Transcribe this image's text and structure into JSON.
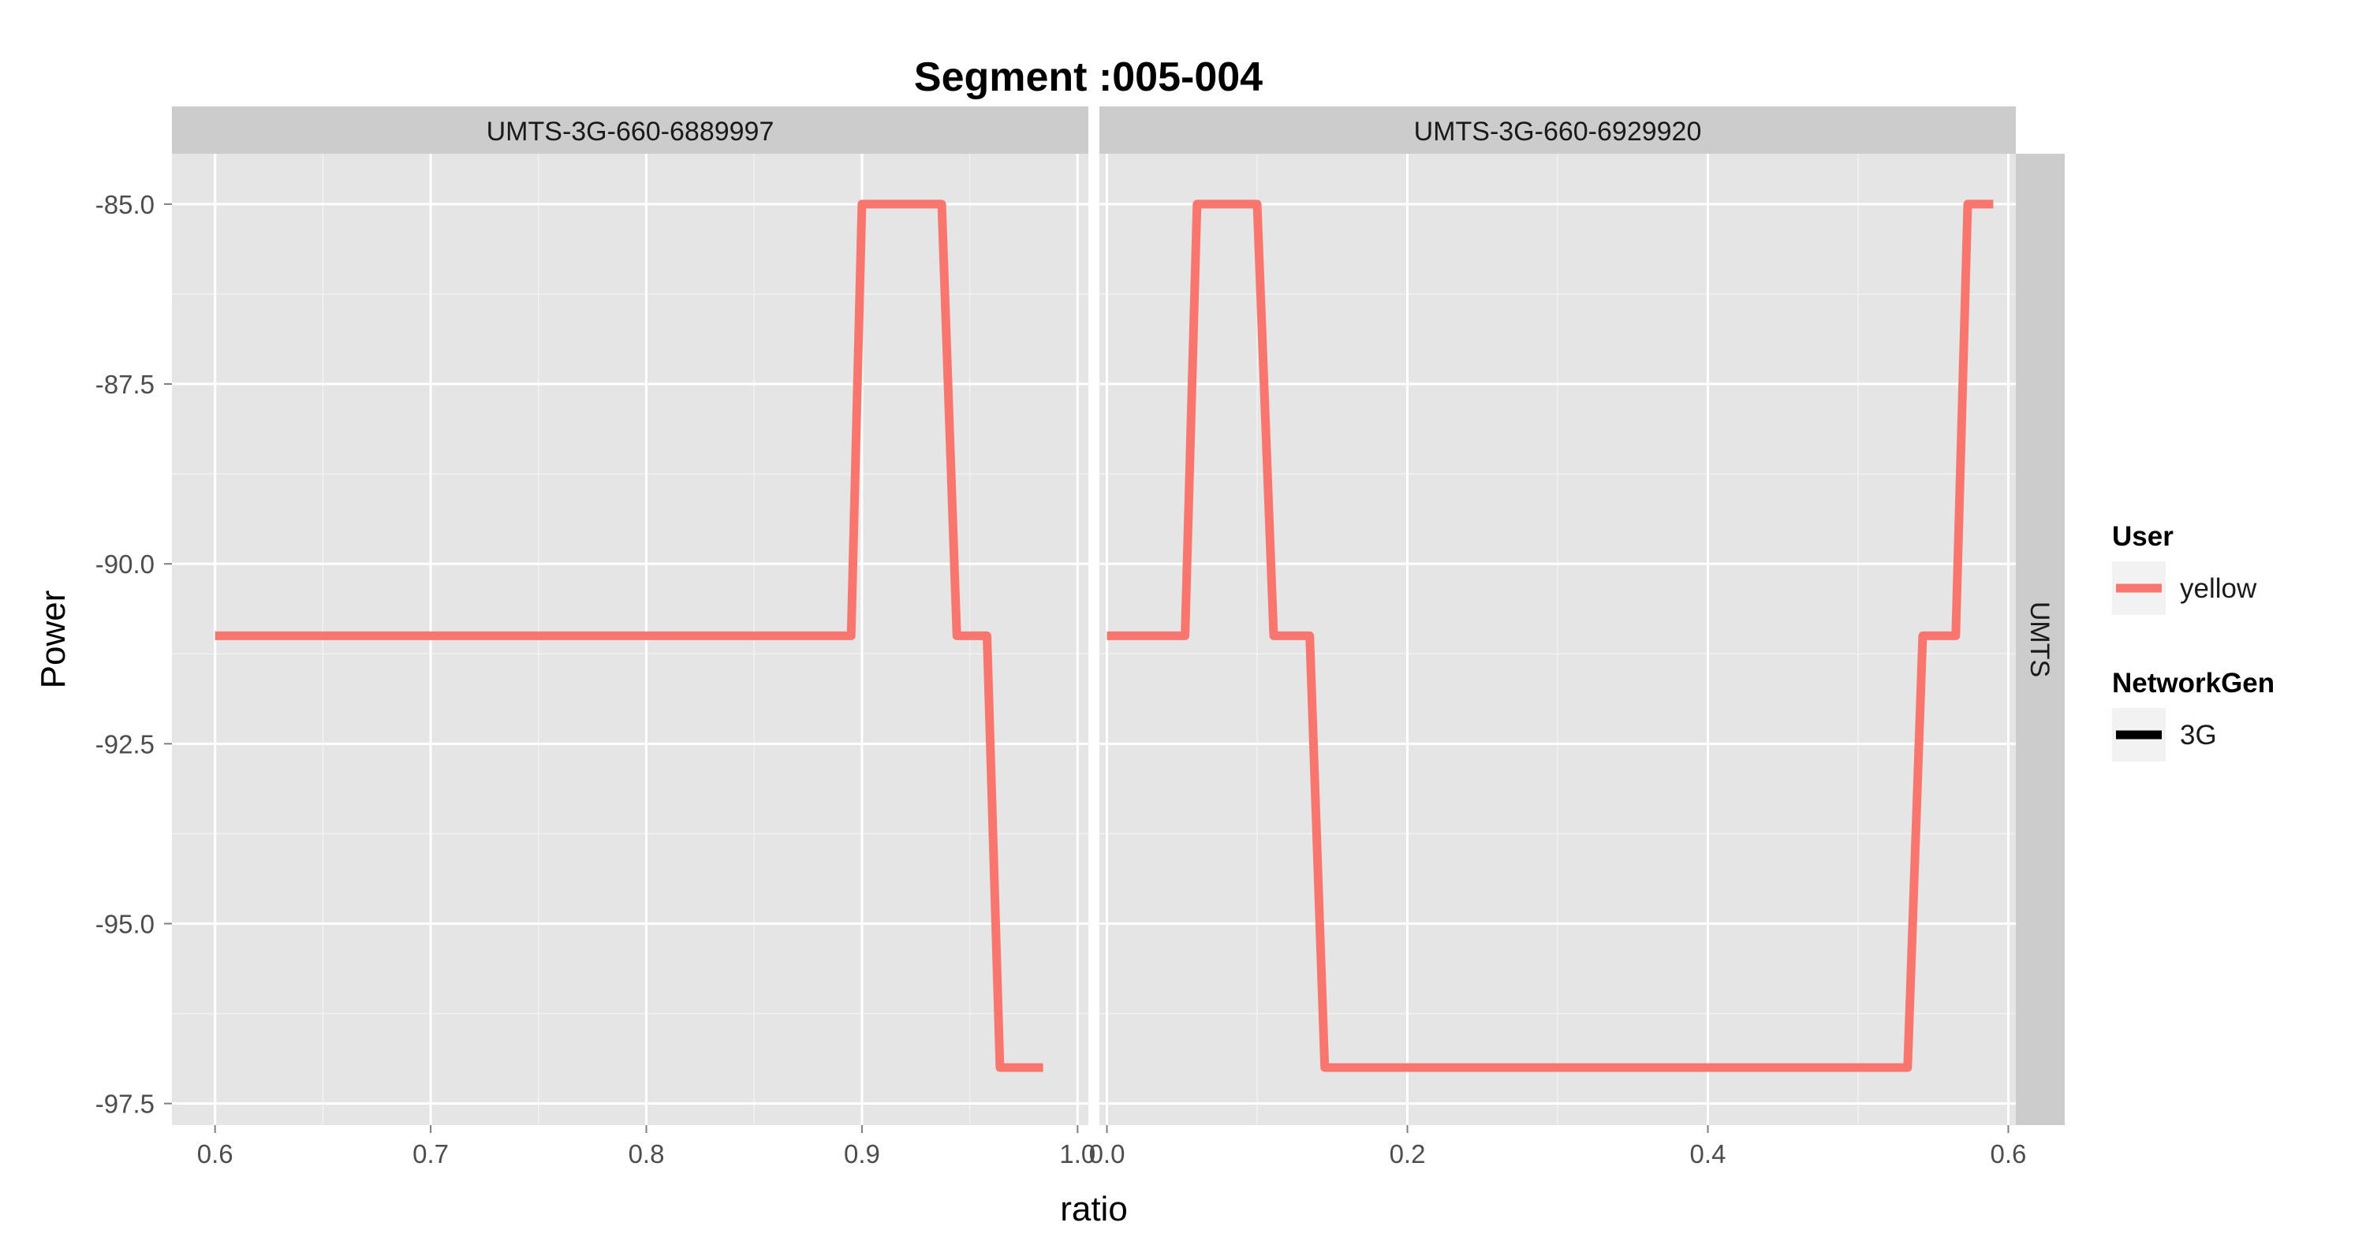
{
  "chart_data": {
    "type": "line",
    "title": "Segment :005-004",
    "xlabel": "ratio",
    "ylabel": "Power",
    "ylim": [
      -97.8,
      -84.3
    ],
    "yticks": [
      -85.0,
      -87.5,
      -90.0,
      -92.5,
      -95.0,
      -97.5
    ],
    "ytick_labels": [
      "-85.0",
      "-87.5",
      "-90.0",
      "-92.5",
      "-95.0",
      "-97.5"
    ],
    "row_strip": "UMTS",
    "line_color": "#F8766D",
    "panels": [
      {
        "strip": "UMTS-3G-660-6889997",
        "xlim": [
          0.58,
          1.005
        ],
        "xticks": [
          0.6,
          0.7,
          0.8,
          0.9,
          1.0
        ],
        "xtick_labels": [
          "0.6",
          "0.7",
          "0.8",
          "0.9",
          "1.0"
        ],
        "series": [
          {
            "name": "yellow",
            "x": [
              0.6,
              0.895,
              0.9,
              0.937,
              0.944,
              0.958,
              0.964,
              0.984
            ],
            "y": [
              -91,
              -91,
              -85,
              -85,
              -91,
              -91,
              -97,
              -97
            ]
          }
        ]
      },
      {
        "strip": "UMTS-3G-660-6929920",
        "xlim": [
          -0.005,
          0.605
        ],
        "xticks": [
          0.0,
          0.2,
          0.4,
          0.6
        ],
        "xtick_labels": [
          "0.0",
          "0.2",
          "0.4",
          "0.6"
        ],
        "series": [
          {
            "name": "yellow",
            "x": [
              0.0,
              0.052,
              0.06,
              0.1,
              0.111,
              0.135,
              0.145,
              0.533,
              0.543,
              0.565,
              0.573,
              0.585,
              0.59
            ],
            "y": [
              -91,
              -91,
              -85,
              -85,
              -91,
              -91,
              -97,
              -97,
              -91,
              -91,
              -85,
              -85,
              -85
            ]
          }
        ]
      }
    ],
    "legend": {
      "placement": "right",
      "groups": [
        {
          "title": "User",
          "items": [
            {
              "label": "yellow",
              "color": "#F8766D"
            }
          ]
        },
        {
          "title": "NetworkGen",
          "items": [
            {
              "label": "3G",
              "color": "#000000"
            }
          ]
        }
      ]
    }
  }
}
